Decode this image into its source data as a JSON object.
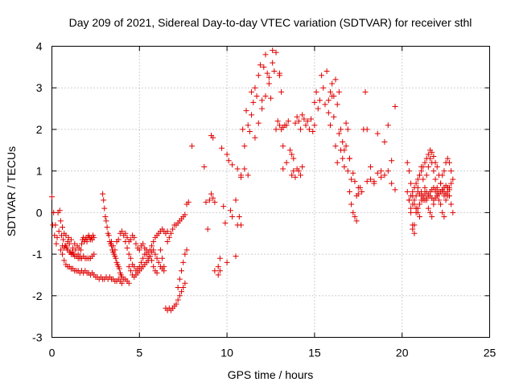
{
  "chart_data": {
    "type": "scatter",
    "title": "Day 209 of 2021, Sidereal Day-to-day VTEC variation (SDTVAR) for receiver sthl",
    "xlabel": "GPS time / hours",
    "ylabel": "SDTVAR / TECUs",
    "xlim": [
      0,
      25
    ],
    "ylim": [
      -3,
      4
    ],
    "xticks": [
      "0",
      "5",
      "10",
      "15",
      "20",
      "25"
    ],
    "yticks": [
      "-3",
      "-2",
      "-1",
      "0",
      "1",
      "2",
      "3",
      "4"
    ],
    "grid": true,
    "marker": "plus",
    "color": "#e00000",
    "series": [
      {
        "name": "SDTVAR",
        "x": [
          0.0,
          0.05,
          0.1,
          0.15,
          0.2,
          0.25,
          0.3,
          0.35,
          0.4,
          0.45,
          0.5,
          0.55,
          0.6,
          0.65,
          0.7,
          0.75,
          0.8,
          0.85,
          0.9,
          0.95,
          1.0,
          1.05,
          1.1,
          1.15,
          1.2,
          1.25,
          1.3,
          1.35,
          1.4,
          1.45,
          1.5,
          1.55,
          1.6,
          1.65,
          1.7,
          1.75,
          1.8,
          1.85,
          1.9,
          1.95,
          2.0,
          2.05,
          2.1,
          2.15,
          2.2,
          2.25,
          2.3,
          2.35,
          2.4,
          0.5,
          0.6,
          0.7,
          0.8,
          0.9,
          1.0,
          1.1,
          1.2,
          1.3,
          1.4,
          1.5,
          1.6,
          1.7,
          1.8,
          1.9,
          2.0,
          2.1,
          2.2,
          2.3,
          2.4,
          0.6,
          0.7,
          0.8,
          0.9,
          1.0,
          1.1,
          1.2,
          1.3,
          1.4,
          1.5,
          1.6,
          1.7,
          1.8,
          1.9,
          2.0,
          2.1,
          2.2,
          2.3,
          2.4,
          2.5,
          2.6,
          2.7,
          2.8,
          2.9,
          3.0,
          3.1,
          3.2,
          3.3,
          3.4,
          3.5,
          3.6,
          3.7,
          3.8,
          3.9,
          4.0,
          4.1,
          4.2,
          4.3,
          4.4,
          2.9,
          2.95,
          3.0,
          3.05,
          3.1,
          3.15,
          3.2,
          3.25,
          3.3,
          3.35,
          3.4,
          3.45,
          3.5,
          3.55,
          3.6,
          3.65,
          3.7,
          3.75,
          3.8,
          3.85,
          3.9,
          3.95,
          4.0,
          3.4,
          3.5,
          3.6,
          3.7,
          3.8,
          3.9,
          4.0,
          4.1,
          4.2,
          4.3,
          4.4,
          4.5,
          4.6,
          4.7,
          4.8,
          4.9,
          5.0,
          5.1,
          5.2,
          5.3,
          5.4,
          5.5,
          5.6,
          5.7,
          5.8,
          5.9,
          6.0,
          4.2,
          4.3,
          4.4,
          4.5,
          4.6,
          4.7,
          4.8,
          4.9,
          5.0,
          5.1,
          5.2,
          5.3,
          5.4,
          5.5,
          5.6,
          5.7,
          5.8,
          5.9,
          6.0,
          6.1,
          6.2,
          6.3,
          6.4,
          4.4,
          4.5,
          4.6,
          4.7,
          4.8,
          4.9,
          5.0,
          5.1,
          5.2,
          5.3,
          5.4,
          5.5,
          5.6,
          5.7,
          5.8,
          5.9,
          6.0,
          6.1,
          6.2,
          6.3,
          6.4,
          6.5,
          6.6,
          6.2,
          6.3,
          6.4,
          6.5,
          6.6,
          6.7,
          6.8,
          6.9,
          7.0,
          7.1,
          7.2,
          7.3,
          7.4,
          7.5,
          7.6,
          6.6,
          6.7,
          6.8,
          6.9,
          7.0,
          7.1,
          7.2,
          7.3,
          7.4,
          7.5,
          7.6,
          7.7,
          7.8,
          8.0,
          7.2,
          7.3,
          7.4,
          7.5,
          7.6,
          7.7,
          8.7,
          8.8,
          8.9,
          9.1,
          9.2,
          9.3,
          9.5,
          9.6,
          9.7,
          9.9,
          10.0,
          10.2,
          10.3,
          10.5,
          10.6,
          10.8,
          9.0,
          9.1,
          9.2,
          9.3,
          9.5,
          9.6,
          9.8,
          10.0,
          10.1,
          10.3,
          10.5,
          10.6,
          10.7,
          10.8,
          10.8,
          10.9,
          11.0,
          11.1,
          11.2,
          11.3,
          11.4,
          11.5,
          11.6,
          11.7,
          11.8,
          11.9,
          12.0,
          12.1,
          12.2,
          12.3,
          12.4,
          12.5,
          12.6,
          12.7,
          12.8,
          12.9,
          13.0,
          13.1,
          13.2,
          11.0,
          11.2,
          11.4,
          11.6,
          11.8,
          12.0,
          12.2,
          12.4,
          12.6,
          12.8,
          13.0,
          13.2,
          13.4,
          13.0,
          13.1,
          13.2,
          13.3,
          13.4,
          13.5,
          13.6,
          13.7,
          13.8,
          13.9,
          14.0,
          14.1,
          14.2,
          14.3,
          14.4,
          14.5,
          14.6,
          14.7,
          14.8,
          14.9,
          15.0,
          13.7,
          13.8,
          13.9,
          14.0,
          14.1,
          14.2,
          14.3,
          15.0,
          15.1,
          15.2,
          15.3,
          15.4,
          15.5,
          15.6,
          15.7,
          15.8,
          15.9,
          16.0,
          16.1,
          16.2,
          16.3,
          16.4,
          16.5,
          16.6,
          16.7,
          16.8,
          16.9,
          17.0,
          17.1,
          17.2,
          17.3,
          17.4,
          17.5,
          15.8,
          15.9,
          16.0,
          16.1,
          16.2,
          16.3,
          16.4,
          16.5,
          16.6,
          16.7,
          16.8,
          16.9,
          17.0,
          17.0,
          17.1,
          17.2,
          17.3,
          17.4,
          17.5,
          17.6,
          17.7,
          17.8,
          17.9,
          18.0,
          18.2,
          18.4,
          18.6,
          18.8,
          19.0,
          19.2,
          19.4,
          19.6,
          18.0,
          18.2,
          18.4,
          18.6,
          18.8,
          19.0,
          19.2,
          19.4,
          19.6,
          20.3,
          20.4,
          20.5,
          20.6,
          20.7,
          20.8,
          20.9,
          21.0,
          21.1,
          21.2,
          21.3,
          21.4,
          21.5,
          21.6,
          21.7,
          21.8,
          21.9,
          22.0,
          22.1,
          22.2,
          22.3,
          22.4,
          22.5,
          22.6,
          22.7,
          22.8,
          22.9,
          20.3,
          20.4,
          20.5,
          20.6,
          20.7,
          20.8,
          20.9,
          21.0,
          21.1,
          21.2,
          21.3,
          21.4,
          21.5,
          21.6,
          21.7,
          21.8,
          21.9,
          22.0,
          22.1,
          22.2,
          22.3,
          22.4,
          22.5,
          22.6,
          22.7,
          22.8,
          22.9,
          20.4,
          20.5,
          20.6,
          20.7,
          20.8,
          20.9,
          21.0,
          21.1,
          21.2,
          21.3,
          21.4,
          21.5,
          21.6,
          21.7,
          21.8,
          21.9,
          22.0,
          22.1,
          22.2,
          22.3,
          22.4,
          22.5,
          22.6,
          22.7,
          22.8,
          20.5,
          20.6,
          20.7,
          20.8,
          20.9,
          21.0,
          21.1,
          21.2,
          21.3,
          21.4,
          21.5,
          21.6,
          21.7,
          21.8,
          21.9,
          22.0,
          22.1,
          22.2,
          22.3,
          22.4,
          22.5,
          22.6,
          22.7,
          20.6,
          20.7,
          20.8,
          20.9,
          21.0,
          21.1,
          21.2,
          21.3,
          21.4,
          21.5,
          21.6,
          21.7,
          21.8,
          21.9,
          22.0,
          22.1,
          22.2,
          22.3,
          22.4,
          22.5,
          22.6
        ],
        "y": [
          0.38,
          -0.3,
          0.0,
          -0.55,
          -0.3,
          -0.75,
          -0.6,
          0.0,
          -0.45,
          0.05,
          -0.2,
          -0.55,
          -0.35,
          -0.65,
          -0.5,
          -0.8,
          -0.55,
          -0.85,
          -0.7,
          -0.6,
          -0.75,
          -0.95,
          -0.65,
          -0.95,
          -0.85,
          -1.0,
          -0.75,
          -0.9,
          -1.05,
          -0.8,
          -1.0,
          -0.85,
          -1.1,
          -0.9,
          -0.75,
          -0.65,
          -0.6,
          -0.7,
          -0.65,
          -0.6,
          -0.7,
          -0.6,
          -0.55,
          -0.6,
          -0.65,
          -0.6,
          -0.65,
          -0.55,
          -0.6,
          -0.9,
          -1.0,
          -1.15,
          -1.25,
          -1.3,
          -1.3,
          -1.35,
          -1.35,
          -1.4,
          -1.4,
          -1.4,
          -1.45,
          -1.4,
          -1.45,
          -1.4,
          -1.45,
          -1.45,
          -1.5,
          -1.45,
          -1.5,
          -0.8,
          -0.85,
          -0.8,
          -0.9,
          -0.95,
          -1.0,
          -1.0,
          -1.05,
          -1.05,
          -1.1,
          -1.05,
          -1.1,
          -1.05,
          -1.1,
          -1.1,
          -1.1,
          -1.1,
          -1.05,
          -1.0,
          -1.55,
          -1.55,
          -1.6,
          -1.55,
          -1.6,
          -1.6,
          -1.55,
          -1.6,
          -1.55,
          -1.6,
          -1.6,
          -1.65,
          -1.65,
          -1.6,
          -1.65,
          -1.7,
          -1.6,
          -1.6,
          -1.65,
          -1.7,
          0.45,
          0.3,
          0.1,
          -0.1,
          -0.2,
          -0.35,
          -0.5,
          -0.55,
          -0.7,
          -0.75,
          -0.8,
          -0.9,
          -0.95,
          -1.0,
          -1.05,
          -1.1,
          -1.2,
          -1.25,
          -1.3,
          -1.35,
          -1.45,
          -1.5,
          -1.55,
          -0.7,
          -0.8,
          -0.9,
          -0.7,
          -0.65,
          -0.5,
          -0.45,
          -0.55,
          -0.7,
          -0.85,
          -1.0,
          -1.1,
          -1.25,
          -1.3,
          -1.4,
          -1.35,
          -1.3,
          -1.2,
          -1.1,
          -1.0,
          -0.9,
          -0.95,
          -1.05,
          -1.15,
          -1.3,
          -1.4,
          -1.45,
          -0.5,
          -0.6,
          -0.7,
          -0.65,
          -0.55,
          -0.6,
          -0.75,
          -0.85,
          -0.9,
          -0.8,
          -0.75,
          -0.85,
          -1.0,
          -1.1,
          -1.05,
          -0.95,
          -0.9,
          -1.0,
          -1.1,
          -1.2,
          -1.3,
          -1.35,
          -1.4,
          -1.3,
          -1.4,
          -1.5,
          -1.55,
          -1.5,
          -1.45,
          -1.4,
          -1.35,
          -1.3,
          -1.25,
          -1.2,
          -1.15,
          -0.9,
          -0.8,
          -0.7,
          -0.6,
          -0.55,
          -0.5,
          -0.45,
          -0.4,
          -0.45,
          -0.5,
          -0.45,
          -0.9,
          -1.1,
          -1.3,
          -2.3,
          -2.35,
          -2.3,
          -2.35,
          -2.3,
          -2.25,
          -2.2,
          -2.1,
          -2.0,
          -1.9,
          -1.8,
          -1.7,
          -0.7,
          -0.6,
          -0.5,
          -0.4,
          -0.3,
          -0.3,
          -0.25,
          -0.2,
          -0.15,
          -0.1,
          -0.05,
          0.2,
          0.25,
          1.6,
          -1.8,
          -1.6,
          -1.4,
          -1.2,
          -1.0,
          -0.9,
          1.1,
          0.25,
          -0.4,
          1.85,
          1.8,
          -1.4,
          -1.3,
          -1.1,
          1.55,
          -0.25,
          1.4,
          0.05,
          -0.1,
          0.3,
          1.05,
          0.9,
          0.3,
          0.45,
          0.35,
          0.25,
          -1.5,
          -1.4,
          0.15,
          -1.2,
          1.25,
          1.15,
          -1.05,
          -0.3,
          -0.1,
          -0.3,
          0.85,
          2.0,
          1.05,
          2.45,
          2.1,
          1.95,
          2.9,
          2.65,
          3.0,
          2.8,
          3.3,
          3.55,
          2.7,
          3.5,
          3.8,
          3.35,
          3.1,
          2.75,
          3.9,
          3.4,
          2.0,
          2.2,
          3.3,
          2.9,
          1.6,
          1.6,
          0.9,
          2.35,
          1.8,
          2.15,
          2.5,
          2.8,
          3.25,
          3.6,
          3.85,
          3.35,
          2.05,
          2.1,
          2.1,
          2.0,
          1.05,
          2.1,
          1.2,
          2.2,
          1.5,
          1.4,
          1.3,
          2.15,
          2.3,
          2.2,
          2.0,
          2.35,
          2.25,
          2.1,
          2.2,
          2.0,
          2.25,
          1.95,
          2.1,
          0.9,
          1.0,
          0.85,
          1.05,
          1.0,
          0.9,
          1.1,
          2.65,
          2.9,
          2.5,
          2.7,
          3.3,
          3.0,
          2.6,
          3.4,
          2.7,
          2.9,
          3.1,
          2.8,
          3.2,
          2.6,
          1.9,
          2.0,
          1.7,
          1.5,
          2.15,
          2.0,
          1.3,
          0.8,
          0.95,
          0.75,
          0.4,
          0.6,
          2.4,
          2.1,
          2.8,
          2.3,
          1.6,
          1.2,
          2.9,
          1.5,
          1.3,
          1.1,
          1.6,
          1.0,
          1.3,
          0.5,
          0.2,
          0.0,
          -0.1,
          -0.2,
          0.45,
          0.6,
          0.5,
          2.0,
          2.9,
          2.0,
          1.1,
          0.75,
          1.9,
          1.0,
          1.7,
          2.1,
          1.25,
          2.55,
          0.75,
          0.8,
          0.7,
          0.95,
          0.85,
          0.9,
          1.0,
          0.7,
          0.55,
          1.2,
          1.0,
          0.7,
          0.4,
          0.2,
          0.1,
          0.0,
          -0.1,
          0.5,
          0.3,
          0.6,
          0.9,
          1.1,
          1.3,
          1.2,
          1.0,
          0.8,
          0.6,
          0.5,
          0.7,
          0.9,
          1.0,
          1.2,
          1.3,
          1.2,
          1.0,
          0.8,
          0.5,
          0.3,
          0.0,
          -0.3,
          -0.5,
          0.1,
          0.6,
          0.9,
          1.1,
          0.8,
          0.5,
          0.3,
          0.1,
          0.0,
          -0.1,
          0.2,
          0.5,
          0.4,
          0.3,
          0.2,
          0.0,
          -0.1,
          0.3,
          0.6,
          0.4,
          0.2,
          0.0,
          0.3,
          0.4,
          0.5,
          0.6,
          0.7,
          0.8,
          0.9,
          1.0,
          1.1,
          1.2,
          1.3,
          1.4,
          1.5,
          1.45,
          1.35,
          1.2,
          1.1,
          0.9,
          0.7,
          0.5,
          0.4,
          0.45,
          0.5,
          0.6,
          0.7,
          0.1,
          0.2,
          0.3,
          0.4,
          0.5,
          0.45,
          0.4,
          0.35,
          0.3,
          0.35,
          0.4,
          0.5,
          0.55,
          0.6,
          0.55,
          0.5,
          0.45,
          0.5,
          0.55,
          0.6,
          0.65,
          0.6,
          0.55,
          -0.4,
          -0.3,
          0.0,
          0.1,
          0.2,
          0.3,
          0.4,
          0.45,
          0.5,
          0.45,
          0.4,
          0.35,
          0.3,
          0.35,
          0.4,
          0.45,
          0.5,
          0.55,
          0.5,
          0.45,
          0.4
        ]
      }
    ]
  }
}
